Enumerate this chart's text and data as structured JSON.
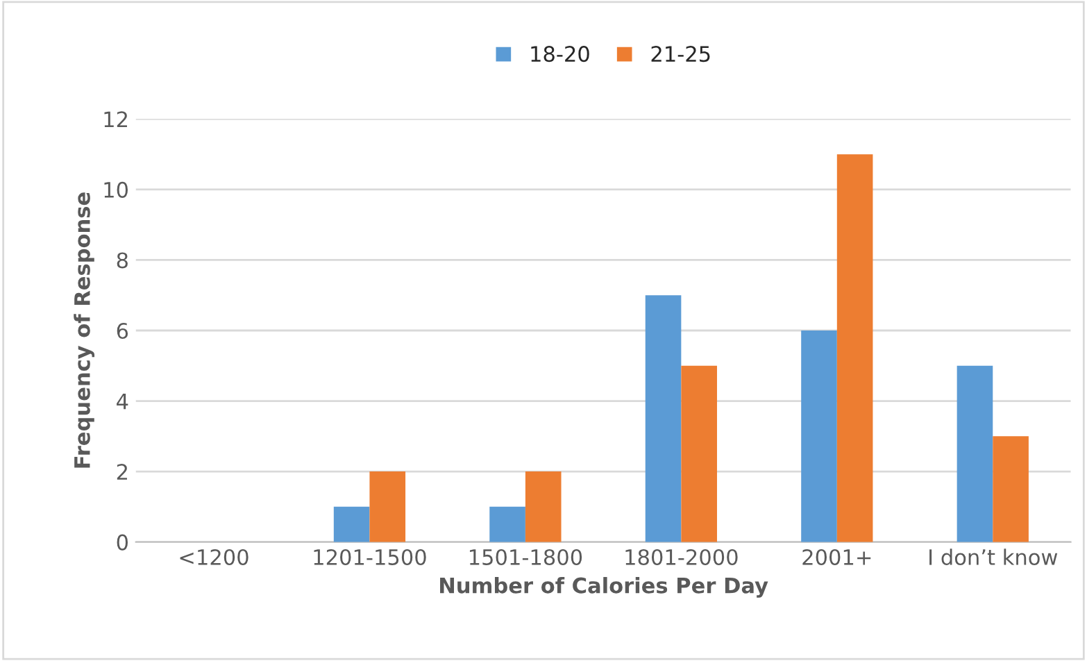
{
  "chart_data": {
    "type": "bar",
    "xlabel": "Number of Calories Per Day",
    "ylabel": "Frequency of Response",
    "categories": [
      "<1200",
      "1201-1500",
      "1501-1800",
      "1801-2000",
      "2001+",
      "I don’t know"
    ],
    "series": [
      {
        "name": "18-20",
        "color": "#5b9bd5",
        "values": [
          0,
          1,
          1,
          7,
          6,
          5
        ]
      },
      {
        "name": "21-25",
        "color": "#ed7d31",
        "values": [
          0,
          2,
          2,
          5,
          11,
          3
        ]
      }
    ],
    "ylim": [
      0,
      12
    ],
    "yticks": [
      0,
      2,
      4,
      6,
      8,
      10,
      12
    ],
    "grid": "y",
    "legend": "top"
  }
}
